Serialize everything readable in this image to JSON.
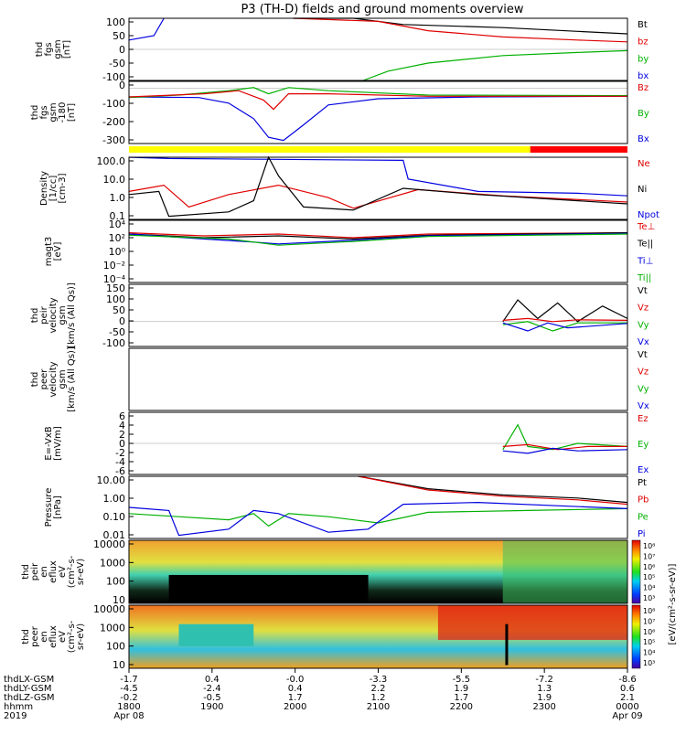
{
  "title": "P3 (TH-D) fields and ground moments overview",
  "chart_data": [
    {
      "type": "line",
      "ylabel_lines": [
        "thd",
        "fgs",
        "gsm",
        "[nT]"
      ],
      "yticks": [
        "100",
        "50",
        "0",
        "-50",
        "-100"
      ],
      "legend": [
        {
          "text": "Bt",
          "color": "#000000"
        },
        {
          "text": "bz",
          "color": "#e00000"
        },
        {
          "text": "by",
          "color": "#00b000"
        },
        {
          "text": "bx",
          "color": "#0000e0"
        }
      ],
      "ylim": [
        -100,
        100
      ]
    },
    {
      "type": "line",
      "ylabel_lines": [
        "thd",
        "fgs",
        "gsm",
        "-180",
        "[nT]"
      ],
      "yticks": [
        "0",
        "-100",
        "-200",
        "-300"
      ],
      "legend": [
        {
          "text": "Bz",
          "color": "#e00000"
        },
        {
          "text": "By",
          "color": "#00b000"
        },
        {
          "text": "Bx",
          "color": "#0000e0"
        }
      ],
      "ylim": [
        -330,
        40
      ]
    },
    {
      "type": "line",
      "scale": "log",
      "ylabel_lines": [
        "Density",
        "[1/cc]",
        "[cm-3]"
      ],
      "yticks": [
        "100.0",
        "10.0",
        "1.0",
        "0.1"
      ],
      "legend": [
        {
          "text": "Ne",
          "color": "#e00000"
        },
        {
          "text": "Ni",
          "color": "#000000"
        },
        {
          "text": "Npot",
          "color": "#0000e0"
        }
      ]
    },
    {
      "type": "line",
      "scale": "log",
      "ylabel_lines": [
        "magt3",
        "[eV]"
      ],
      "yticks": [
        "10⁴",
        "10²",
        "10⁰",
        "10⁻²",
        "10⁻⁴"
      ],
      "legend": [
        {
          "text": "Te⊥",
          "color": "#e00000"
        },
        {
          "text": "Te||",
          "color": "#000000"
        },
        {
          "text": "Ti⊥",
          "color": "#0000e0"
        },
        {
          "text": "Ti||",
          "color": "#00b000"
        }
      ]
    },
    {
      "type": "line",
      "ylabel_lines": [
        "thd",
        "peir",
        "velocity",
        "gsm",
        "[km/s (All Qs)]"
      ],
      "yticks": [
        "150",
        "100",
        "50",
        "0",
        "-50",
        "-100"
      ],
      "legend": [
        {
          "text": "Vt",
          "color": "#000000"
        },
        {
          "text": "Vz",
          "color": "#e00000"
        },
        {
          "text": "Vy",
          "color": "#00b000"
        },
        {
          "text": "Vx",
          "color": "#0000e0"
        }
      ],
      "ylim": [
        -100,
        150
      ]
    },
    {
      "type": "line",
      "ylabel_lines": [
        "thd",
        "peer",
        "velocity",
        "gsm",
        "[km/s (All Qs)]"
      ],
      "yticks": [],
      "legend": [
        {
          "text": "Vt",
          "color": "#000000"
        },
        {
          "text": "Vz",
          "color": "#e00000"
        },
        {
          "text": "Vy",
          "color": "#00b000"
        },
        {
          "text": "Vx",
          "color": "#0000e0"
        }
      ]
    },
    {
      "type": "line",
      "ylabel_lines": [
        "E=-VxB",
        "[mV/m]"
      ],
      "yticks": [
        "6",
        "4",
        "2",
        "0",
        "-2",
        "-4",
        "-6"
      ],
      "legend": [
        {
          "text": "Ez",
          "color": "#e00000"
        },
        {
          "text": "Ey",
          "color": "#00b000"
        },
        {
          "text": "Ex",
          "color": "#0000e0"
        }
      ],
      "ylim": [
        -6,
        6
      ]
    },
    {
      "type": "line",
      "scale": "log",
      "ylabel_lines": [
        "Pressure",
        "[nPa]"
      ],
      "yticks": [
        "10.00",
        "1.00",
        "0.10",
        "0.01"
      ],
      "legend": [
        {
          "text": "Pt",
          "color": "#000000"
        },
        {
          "text": "Pb",
          "color": "#e00000"
        },
        {
          "text": "Pe",
          "color": "#00b000"
        },
        {
          "text": "Pi",
          "color": "#0000e0"
        }
      ]
    },
    {
      "type": "heatmap",
      "ylabel_lines": [
        "thd",
        "peir",
        "en",
        "eflux",
        "eV",
        "(cm²-s-",
        "sr-eV)"
      ],
      "yticks": [
        "10000",
        "1000",
        "100",
        "10"
      ]
    },
    {
      "type": "heatmap",
      "ylabel_lines": [
        "thd",
        "peer",
        "en",
        "eflux",
        "eV",
        "(cm²-s-",
        "sr-eV)"
      ],
      "yticks": [
        "10000",
        "1000",
        "100",
        "10"
      ]
    }
  ],
  "colorbar": {
    "label": "[eV/(cm²-s-sr-eV)]",
    "upper_ticks": [
      "10⁸",
      "10⁷",
      "10⁶",
      "10⁵",
      "10⁴",
      "10³"
    ],
    "lower_ticks": [
      "10⁸",
      "10⁷",
      "10⁶",
      "10⁵",
      "10⁴",
      "10³"
    ]
  },
  "status_bar": {
    "left_color": "#ffff00",
    "right_color": "#ff0000",
    "split_fraction": 0.805
  },
  "xaxis": {
    "row_labels": [
      "thdLX-GSM",
      "thdLY-GSM",
      "thdLZ-GSM",
      "hhmm",
      "2019"
    ],
    "columns": [
      {
        "values": [
          "-1.7",
          "-4.5",
          "-0.2",
          "1800",
          "Apr 08"
        ]
      },
      {
        "values": [
          "0.4",
          "-2.4",
          "-0.5",
          "1900",
          ""
        ]
      },
      {
        "values": [
          "-0.0",
          "0.4",
          "1.7",
          "2000",
          ""
        ]
      },
      {
        "values": [
          "-3.3",
          "2.2",
          "1.2",
          "2100",
          ""
        ]
      },
      {
        "values": [
          "-5.5",
          "1.9",
          "1.7",
          "2200",
          ""
        ]
      },
      {
        "values": [
          "-7.2",
          "1.3",
          "1.9",
          "2300",
          ""
        ]
      },
      {
        "values": [
          "-8.6",
          "0.6",
          "2.1",
          "0000",
          "Apr 09"
        ]
      }
    ]
  }
}
